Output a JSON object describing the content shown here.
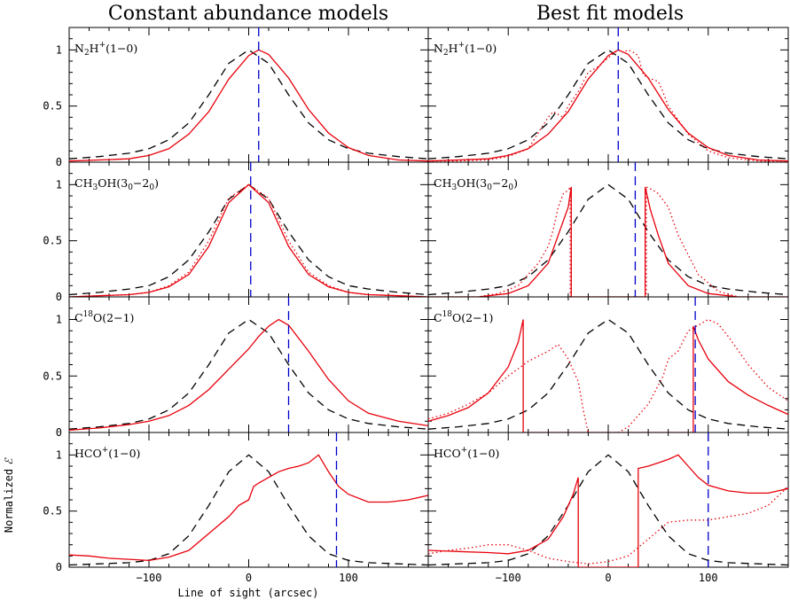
{
  "titles": [
    "Constant abundance models",
    "Best fit models"
  ],
  "axes": {
    "xlabel": "Line of sight (arcsec)",
    "ylabel": "Normalized",
    "xlim": [
      -180,
      180
    ],
    "ylim": [
      0,
      1.2
    ],
    "xticks": [
      -100,
      0,
      100
    ],
    "xtick_labels": [
      "−100",
      "0",
      "100"
    ],
    "yticks": [
      0,
      0.5,
      1
    ],
    "ytick_labels": [
      "0",
      "0.5",
      "1"
    ]
  },
  "colors": {
    "reference": "#000000",
    "model": "#e8000b",
    "marker": "#0000cc"
  },
  "molecules": [
    {
      "key": "n2h",
      "label": {
        "base": "N",
        "sub": "2",
        "main": "H",
        "sup": "+",
        "rest": "(1−0)"
      }
    },
    {
      "key": "ch3oh",
      "label": {
        "base": "CH",
        "sub": "3",
        "main": "OH(3",
        "sub2": "0",
        "mid": "−2",
        "sub3": "0",
        "rest": ")"
      }
    },
    {
      "key": "c18o",
      "label": {
        "base": "C",
        "sup": "18",
        "rest": "O(2−1)"
      }
    },
    {
      "key": "hco",
      "label": {
        "base": "HCO",
        "sup": "+",
        "rest": "(1−0)"
      }
    }
  ],
  "chart_data": [
    {
      "type": "line",
      "column": "Constant abundance models",
      "panel": "N2H+(1-0)",
      "marker_x": 10,
      "series": [
        {
          "style": "dashed",
          "color": "#000000",
          "x": [
            -180,
            -150,
            -120,
            -100,
            -80,
            -60,
            -40,
            -20,
            0,
            20,
            40,
            60,
            80,
            100,
            120,
            150,
            180
          ],
          "y": [
            0.03,
            0.05,
            0.08,
            0.12,
            0.2,
            0.35,
            0.6,
            0.88,
            1.0,
            0.88,
            0.6,
            0.35,
            0.2,
            0.12,
            0.08,
            0.05,
            0.03
          ]
        },
        {
          "style": "solid",
          "color": "#e8000b",
          "x": [
            -180,
            -150,
            -120,
            -100,
            -80,
            -60,
            -40,
            -20,
            0,
            10,
            20,
            40,
            60,
            80,
            100,
            120,
            150,
            180
          ],
          "y": [
            0.01,
            0.02,
            0.03,
            0.06,
            0.12,
            0.25,
            0.45,
            0.74,
            0.95,
            1.0,
            0.96,
            0.75,
            0.47,
            0.26,
            0.13,
            0.06,
            0.02,
            0.01
          ]
        }
      ]
    },
    {
      "type": "line",
      "column": "Best fit models",
      "panel": "N2H+(1-0)",
      "marker_x": 10,
      "series": [
        {
          "style": "dashed",
          "color": "#000000",
          "x": [
            -180,
            -150,
            -120,
            -100,
            -80,
            -60,
            -40,
            -20,
            0,
            20,
            40,
            60,
            80,
            100,
            120,
            150,
            180
          ],
          "y": [
            0.03,
            0.05,
            0.08,
            0.12,
            0.2,
            0.35,
            0.6,
            0.88,
            1.0,
            0.88,
            0.6,
            0.35,
            0.2,
            0.12,
            0.08,
            0.05,
            0.03
          ]
        },
        {
          "style": "solid",
          "color": "#e8000b",
          "x": [
            -180,
            -150,
            -120,
            -100,
            -80,
            -60,
            -40,
            -20,
            0,
            10,
            20,
            40,
            60,
            80,
            100,
            120,
            150,
            180
          ],
          "y": [
            0.01,
            0.02,
            0.03,
            0.06,
            0.12,
            0.25,
            0.45,
            0.74,
            0.95,
            1.0,
            0.96,
            0.75,
            0.47,
            0.26,
            0.13,
            0.06,
            0.02,
            0.01
          ]
        },
        {
          "style": "dotted",
          "color": "#e8000b",
          "x": [
            -180,
            -150,
            -120,
            -100,
            -80,
            -60,
            -55,
            -45,
            -40,
            -30,
            -20,
            -10,
            0,
            10,
            15,
            20,
            25,
            30,
            35,
            40,
            50,
            55,
            60,
            80,
            100,
            120,
            150,
            180
          ],
          "y": [
            0.01,
            0.01,
            0.02,
            0.05,
            0.12,
            0.4,
            0.45,
            0.4,
            0.5,
            0.63,
            0.8,
            0.85,
            0.93,
            1.0,
            0.98,
            1.0,
            0.98,
            0.95,
            0.78,
            0.75,
            0.72,
            0.62,
            0.5,
            0.25,
            0.1,
            0.04,
            0.01,
            0.0
          ]
        }
      ]
    },
    {
      "type": "line",
      "column": "Constant abundance models",
      "panel": "CH3OH(30-20)",
      "marker_x": 2,
      "series": [
        {
          "style": "dashed",
          "color": "#000000",
          "x": [
            -180,
            -150,
            -120,
            -100,
            -80,
            -60,
            -40,
            -20,
            0,
            20,
            40,
            60,
            80,
            100,
            120,
            150,
            180
          ],
          "y": [
            0.02,
            0.04,
            0.07,
            0.1,
            0.18,
            0.33,
            0.58,
            0.87,
            1.0,
            0.87,
            0.58,
            0.33,
            0.18,
            0.1,
            0.07,
            0.04,
            0.02
          ]
        },
        {
          "style": "solid",
          "color": "#e8000b",
          "x": [
            -180,
            -150,
            -120,
            -100,
            -80,
            -60,
            -40,
            -20,
            0,
            20,
            40,
            60,
            80,
            100,
            120,
            150,
            180
          ],
          "y": [
            0.0,
            0.01,
            0.02,
            0.04,
            0.09,
            0.2,
            0.45,
            0.84,
            1.0,
            0.84,
            0.45,
            0.2,
            0.09,
            0.04,
            0.02,
            0.01,
            0.0
          ]
        },
        {
          "style": "dotted",
          "color": "#e8000b",
          "x": [
            -180,
            -150,
            -120,
            -100,
            -80,
            -60,
            -40,
            -20,
            0,
            20,
            40,
            60,
            80,
            100,
            120,
            150,
            180
          ],
          "y": [
            0.0,
            0.01,
            0.02,
            0.04,
            0.1,
            0.22,
            0.5,
            0.88,
            1.0,
            0.88,
            0.5,
            0.22,
            0.1,
            0.04,
            0.02,
            0.01,
            0.0
          ]
        }
      ]
    },
    {
      "type": "line",
      "column": "Best fit models",
      "panel": "CH3OH(30-20)",
      "marker_x": 27,
      "series": [
        {
          "style": "dashed",
          "color": "#000000",
          "x": [
            -180,
            -150,
            -120,
            -100,
            -80,
            -60,
            -40,
            -20,
            0,
            20,
            40,
            60,
            80,
            100,
            120,
            150,
            180
          ],
          "y": [
            0.02,
            0.04,
            0.07,
            0.1,
            0.18,
            0.33,
            0.58,
            0.87,
            1.0,
            0.87,
            0.58,
            0.33,
            0.18,
            0.1,
            0.07,
            0.04,
            0.02
          ]
        },
        {
          "style": "solid",
          "color": "#e8000b",
          "x": [
            -180,
            -130,
            -100,
            -80,
            -60,
            -50,
            -40,
            -37,
            -37,
            37,
            37,
            42,
            50,
            60,
            80,
            100,
            130,
            180
          ],
          "y": [
            0.0,
            0.0,
            0.03,
            0.1,
            0.3,
            0.55,
            0.8,
            0.98,
            0.0,
            0.0,
            0.98,
            0.78,
            0.55,
            0.3,
            0.1,
            0.03,
            0.0,
            0.0
          ]
        },
        {
          "style": "dotted",
          "color": "#e8000b",
          "x": [
            -180,
            -130,
            -110,
            -90,
            -70,
            -60,
            -55,
            -50,
            -45,
            -40,
            -38,
            -38,
            38,
            38,
            45,
            50,
            60,
            70,
            90,
            110,
            130,
            180
          ],
          "y": [
            0.0,
            0.0,
            0.03,
            0.1,
            0.3,
            0.45,
            0.6,
            0.8,
            0.92,
            0.95,
            0.98,
            0.0,
            0.0,
            0.98,
            0.95,
            0.92,
            0.8,
            0.55,
            0.2,
            0.05,
            0.0,
            0.0
          ]
        }
      ]
    },
    {
      "type": "line",
      "column": "Constant abundance models",
      "panel": "C18O(2-1)",
      "marker_x": 40,
      "series": [
        {
          "style": "dashed",
          "color": "#000000",
          "x": [
            -180,
            -150,
            -120,
            -100,
            -80,
            -60,
            -40,
            -20,
            0,
            20,
            40,
            60,
            80,
            100,
            120,
            150,
            180
          ],
          "y": [
            0.03,
            0.05,
            0.08,
            0.12,
            0.2,
            0.35,
            0.6,
            0.88,
            1.0,
            0.88,
            0.6,
            0.35,
            0.2,
            0.12,
            0.08,
            0.05,
            0.03
          ]
        },
        {
          "style": "solid",
          "color": "#e8000b",
          "x": [
            -180,
            -150,
            -120,
            -100,
            -80,
            -60,
            -40,
            -20,
            0,
            10,
            20,
            30,
            40,
            60,
            80,
            100,
            120,
            150,
            180
          ],
          "y": [
            0.02,
            0.04,
            0.07,
            0.1,
            0.15,
            0.24,
            0.38,
            0.56,
            0.74,
            0.85,
            0.94,
            1.0,
            0.95,
            0.72,
            0.47,
            0.28,
            0.17,
            0.1,
            0.06
          ]
        }
      ]
    },
    {
      "type": "line",
      "column": "Best fit models",
      "panel": "C18O(2-1)",
      "marker_x": 87,
      "series": [
        {
          "style": "dashed",
          "color": "#000000",
          "x": [
            -180,
            -150,
            -120,
            -100,
            -80,
            -60,
            -40,
            -20,
            0,
            20,
            40,
            60,
            80,
            100,
            120,
            150,
            180
          ],
          "y": [
            0.03,
            0.05,
            0.08,
            0.12,
            0.2,
            0.35,
            0.6,
            0.88,
            1.0,
            0.88,
            0.6,
            0.35,
            0.2,
            0.12,
            0.08,
            0.05,
            0.03
          ]
        },
        {
          "style": "solid",
          "color": "#e8000b",
          "x": [
            -180,
            -160,
            -140,
            -120,
            -100,
            -90,
            -85,
            -85,
            85,
            85,
            90,
            100,
            120,
            140,
            160,
            180
          ],
          "y": [
            0.1,
            0.15,
            0.22,
            0.35,
            0.58,
            0.8,
            1.0,
            0.0,
            0.0,
            0.94,
            0.82,
            0.65,
            0.45,
            0.33,
            0.24,
            0.16
          ]
        },
        {
          "style": "dotted",
          "color": "#e8000b",
          "x": [
            -180,
            -160,
            -140,
            -120,
            -100,
            -80,
            -60,
            -50,
            -40,
            -30,
            -25,
            -20,
            -10,
            0,
            10,
            20,
            40,
            55,
            60,
            70,
            80,
            90,
            100,
            110,
            120,
            140,
            160,
            180
          ],
          "y": [
            0.12,
            0.17,
            0.25,
            0.35,
            0.5,
            0.63,
            0.72,
            0.78,
            0.65,
            0.45,
            0.2,
            0.0,
            0.0,
            0.0,
            0.0,
            0.05,
            0.25,
            0.5,
            0.65,
            0.72,
            0.9,
            0.95,
            1.0,
            0.96,
            0.85,
            0.6,
            0.4,
            0.28
          ]
        }
      ]
    },
    {
      "type": "line",
      "column": "Constant abundance models",
      "panel": "HCO+(1-0)",
      "marker_x": 88,
      "series": [
        {
          "style": "dashed",
          "color": "#000000",
          "x": [
            -180,
            -150,
            -120,
            -100,
            -80,
            -60,
            -40,
            -20,
            0,
            20,
            40,
            60,
            80,
            100,
            120,
            150,
            180
          ],
          "y": [
            0.02,
            0.03,
            0.04,
            0.06,
            0.12,
            0.28,
            0.55,
            0.85,
            1.0,
            0.85,
            0.55,
            0.28,
            0.12,
            0.06,
            0.04,
            0.03,
            0.02
          ]
        },
        {
          "style": "solid",
          "color": "#e8000b",
          "x": [
            -180,
            -160,
            -140,
            -120,
            -100,
            -80,
            -60,
            -40,
            -20,
            -10,
            0,
            5,
            10,
            20,
            30,
            40,
            50,
            60,
            70,
            80,
            90,
            100,
            120,
            140,
            160,
            180
          ],
          "y": [
            0.11,
            0.1,
            0.08,
            0.07,
            0.06,
            0.09,
            0.15,
            0.3,
            0.45,
            0.55,
            0.6,
            0.72,
            0.75,
            0.8,
            0.85,
            0.88,
            0.9,
            0.93,
            1.0,
            0.85,
            0.72,
            0.65,
            0.58,
            0.58,
            0.6,
            0.64
          ]
        }
      ]
    },
    {
      "type": "line",
      "column": "Best fit models",
      "panel": "HCO+(1-0)",
      "marker_x": 100,
      "series": [
        {
          "style": "dashed",
          "color": "#000000",
          "x": [
            -180,
            -150,
            -120,
            -100,
            -80,
            -60,
            -40,
            -20,
            0,
            20,
            40,
            60,
            80,
            100,
            120,
            150,
            180
          ],
          "y": [
            0.02,
            0.03,
            0.04,
            0.06,
            0.12,
            0.28,
            0.55,
            0.85,
            1.0,
            0.85,
            0.55,
            0.28,
            0.12,
            0.06,
            0.04,
            0.03,
            0.02
          ]
        },
        {
          "style": "solid",
          "color": "#e8000b",
          "x": [
            -180,
            -150,
            -120,
            -100,
            -80,
            -60,
            -45,
            -35,
            -30,
            -30,
            30,
            30,
            40,
            50,
            60,
            70,
            80,
            90,
            100,
            120,
            140,
            160,
            180
          ],
          "y": [
            0.15,
            0.14,
            0.13,
            0.12,
            0.15,
            0.25,
            0.45,
            0.65,
            0.8,
            0.0,
            0.0,
            0.88,
            0.9,
            0.93,
            0.96,
            1.0,
            0.9,
            0.8,
            0.73,
            0.68,
            0.66,
            0.66,
            0.7
          ]
        },
        {
          "style": "dotted",
          "color": "#e8000b",
          "x": [
            -180,
            -160,
            -140,
            -120,
            -100,
            -80,
            -60,
            -40,
            -20,
            0,
            20,
            40,
            60,
            80,
            100,
            120,
            140,
            160,
            180
          ],
          "y": [
            0.12,
            0.15,
            0.17,
            0.2,
            0.2,
            0.15,
            0.08,
            0.05,
            0.03,
            0.05,
            0.1,
            0.25,
            0.4,
            0.42,
            0.42,
            0.45,
            0.48,
            0.55,
            0.72
          ]
        }
      ]
    }
  ]
}
